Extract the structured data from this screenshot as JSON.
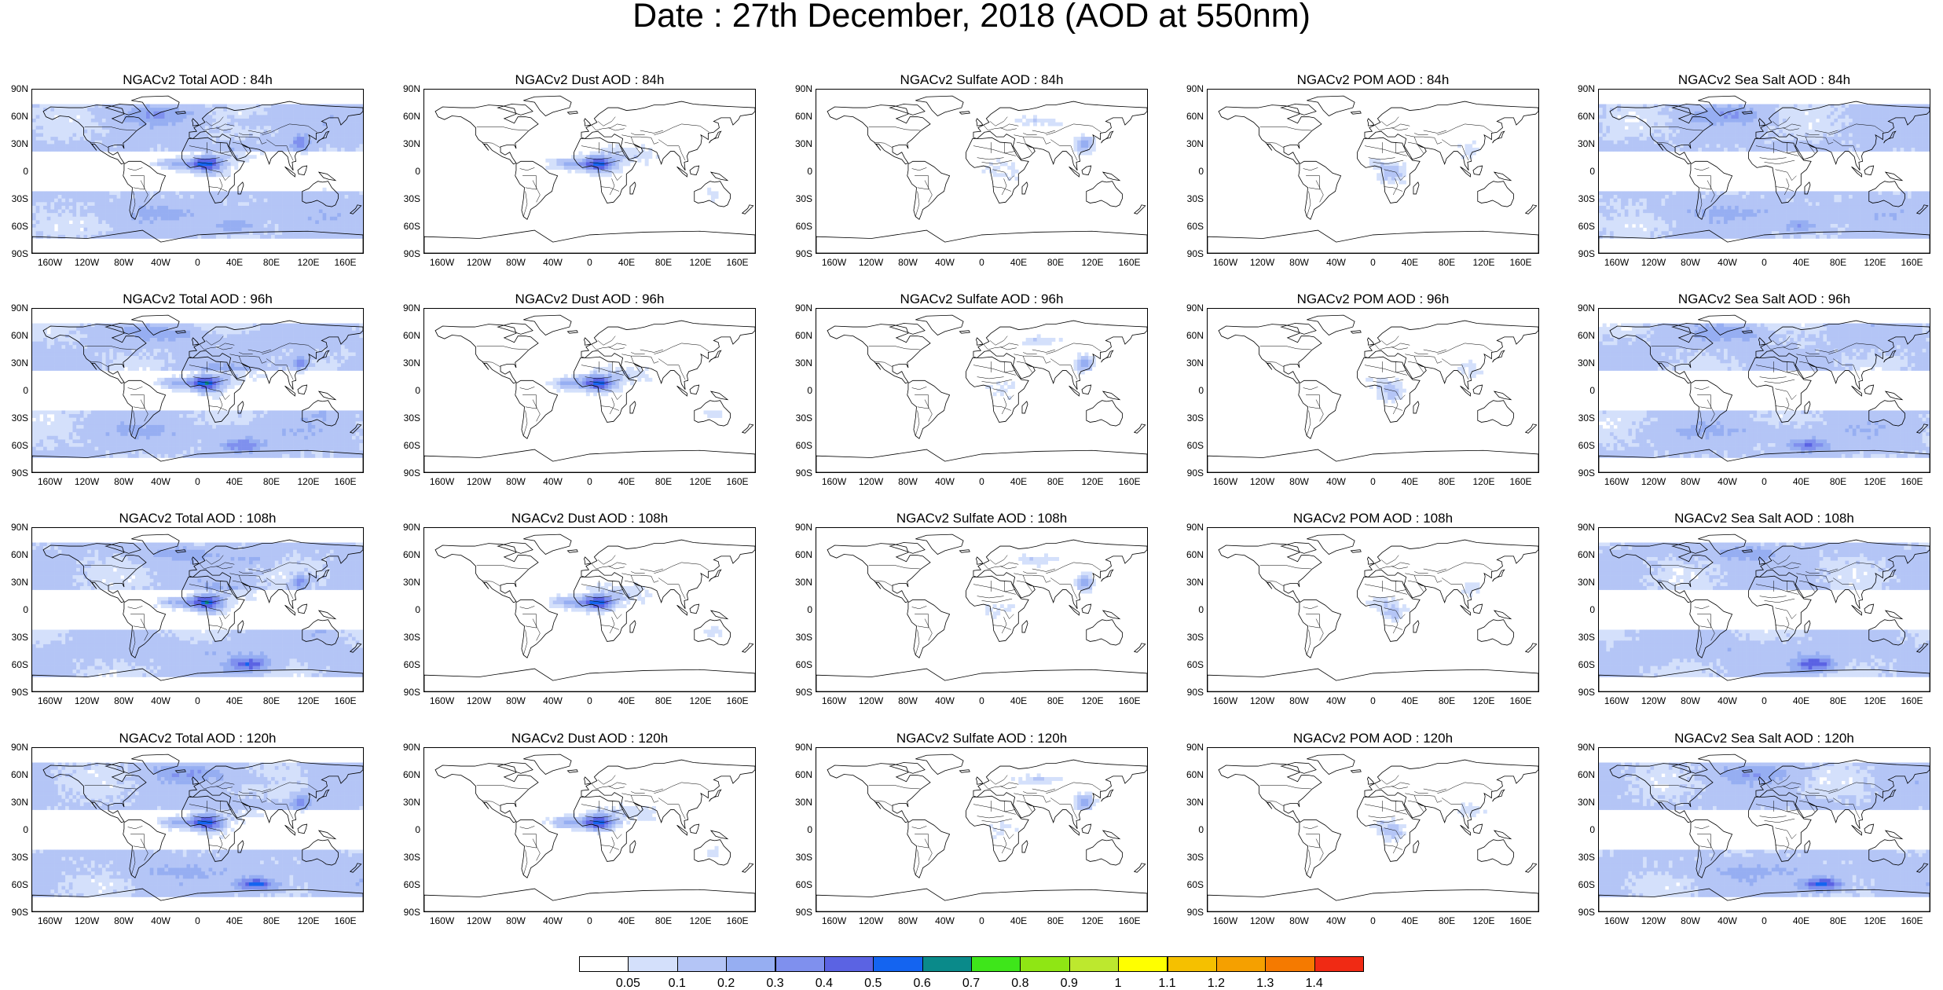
{
  "title": "Date : 27th December, 2018 (AOD at 550nm)",
  "lat_labels": [
    "90N",
    "60N",
    "30N",
    "0",
    "30S",
    "60S",
    "90S"
  ],
  "lon_labels": [
    "160W",
    "120W",
    "80W",
    "40W",
    "0",
    "40E",
    "80E",
    "120E",
    "160E"
  ],
  "panels": [
    {
      "title": "NGACv2 Total AOD : 84h",
      "species": "total"
    },
    {
      "title": "NGACv2 Dust AOD : 84h",
      "species": "dust"
    },
    {
      "title": "NGACv2 Sulfate AOD : 84h",
      "species": "sulfate"
    },
    {
      "title": "NGACv2 POM AOD : 84h",
      "species": "pom"
    },
    {
      "title": "NGACv2 Sea Salt AOD : 84h",
      "species": "seasalt"
    },
    {
      "title": "NGACv2 Total AOD : 96h",
      "species": "total"
    },
    {
      "title": "NGACv2 Dust AOD : 96h",
      "species": "dust"
    },
    {
      "title": "NGACv2 Sulfate AOD : 96h",
      "species": "sulfate"
    },
    {
      "title": "NGACv2 POM AOD : 96h",
      "species": "pom"
    },
    {
      "title": "NGACv2 Sea Salt AOD : 96h",
      "species": "seasalt"
    },
    {
      "title": "NGACv2 Total AOD : 108h",
      "species": "total"
    },
    {
      "title": "NGACv2 Dust AOD : 108h",
      "species": "dust"
    },
    {
      "title": "NGACv2 Sulfate AOD : 108h",
      "species": "sulfate"
    },
    {
      "title": "NGACv2 POM AOD : 108h",
      "species": "pom"
    },
    {
      "title": "NGACv2 Sea Salt AOD : 108h",
      "species": "seasalt"
    },
    {
      "title": "NGACv2 Total AOD : 120h",
      "species": "total"
    },
    {
      "title": "NGACv2 Dust AOD : 120h",
      "species": "dust"
    },
    {
      "title": "NGACv2 Sulfate AOD : 120h",
      "species": "sulfate"
    },
    {
      "title": "NGACv2 POM AOD : 120h",
      "species": "pom"
    },
    {
      "title": "NGACv2 Sea Salt  AOD : 120h",
      "species": "seasalt"
    }
  ],
  "colorbar": {
    "levels": [
      "0.05",
      "0.1",
      "0.2",
      "0.3",
      "0.4",
      "0.5",
      "0.6",
      "0.7",
      "0.8",
      "0.9",
      "1",
      "1.1",
      "1.2",
      "1.3",
      "1.4"
    ],
    "colors": [
      "#ffffff",
      "#d4e0fb",
      "#b4c5f6",
      "#96aef2",
      "#7f90ee",
      "#5b63e3",
      "#1464f0",
      "#0a8a8a",
      "#3ee61a",
      "#8fe614",
      "#bde82e",
      "#ffff00",
      "#f5c000",
      "#f5a000",
      "#f57a00",
      "#f02a14"
    ]
  }
}
